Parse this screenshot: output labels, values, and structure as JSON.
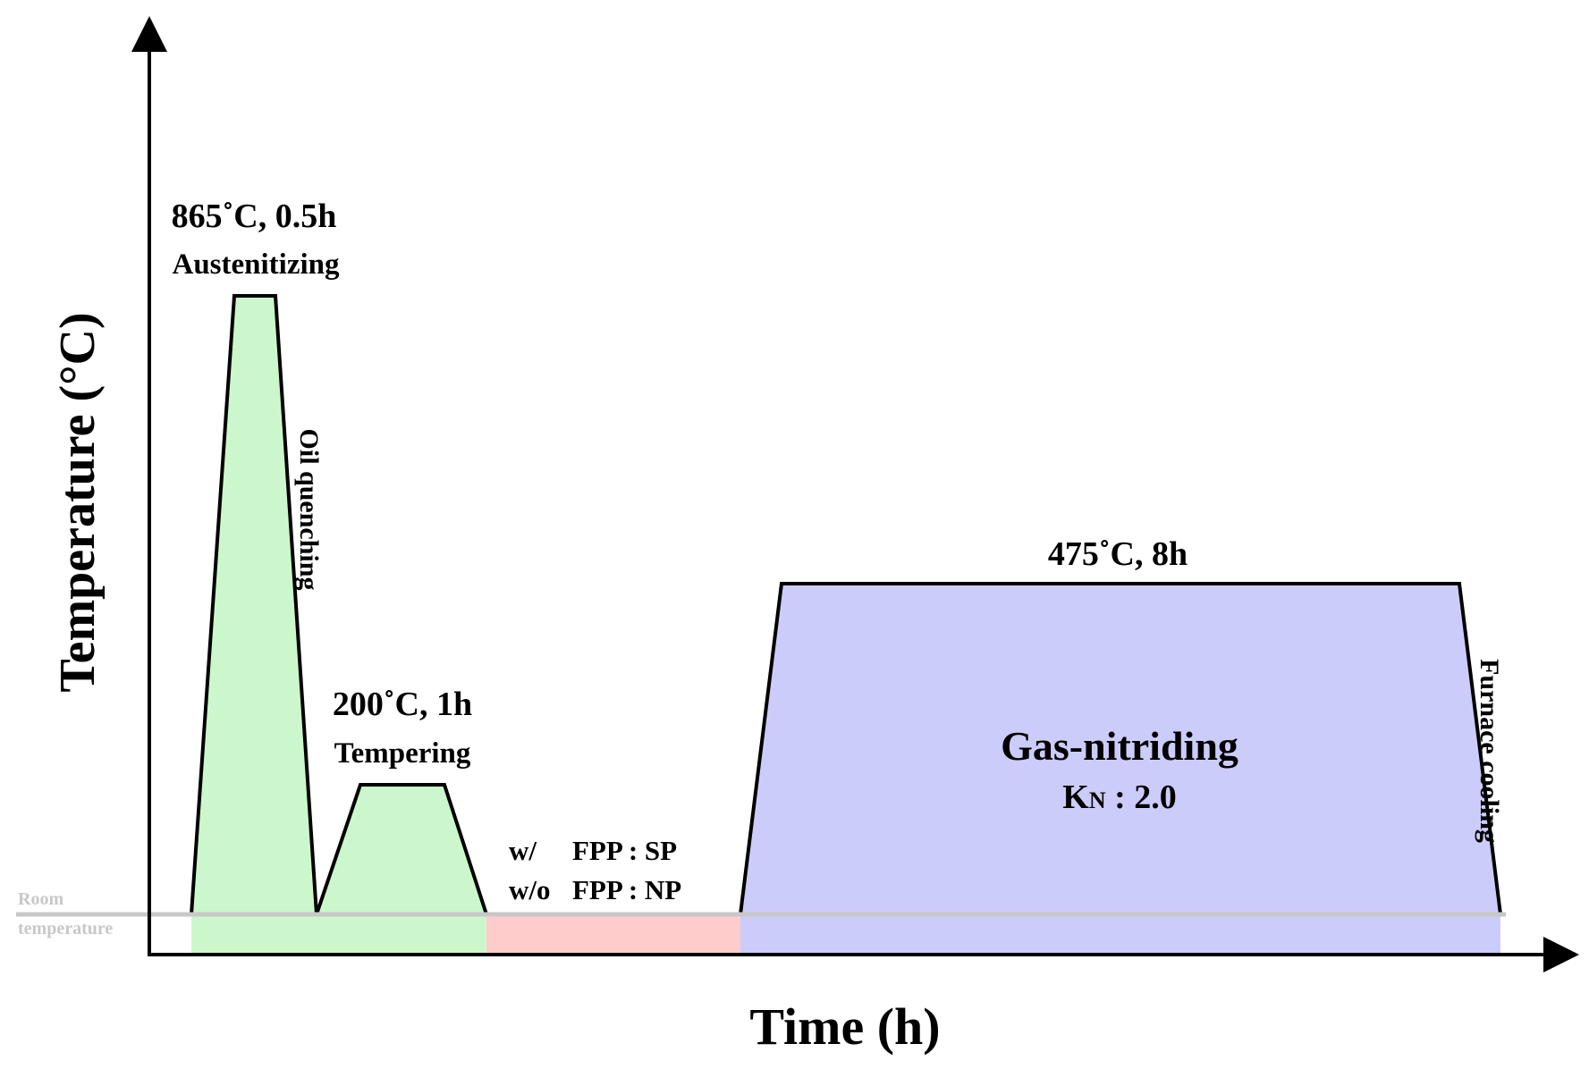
{
  "axes": {
    "x_label": "Time (h)",
    "y_label": "Temperature (°C)"
  },
  "room_temperature": {
    "line1": "Room",
    "line2": "temperature"
  },
  "stages": {
    "austenitizing": {
      "condition": "865˚C, 0.5h",
      "name": "Austenitizing",
      "color": "#ccf7cc"
    },
    "quenching": {
      "name": "Oil quenching"
    },
    "tempering": {
      "condition": "200˚C, 1h",
      "name": "Tempering",
      "color": "#ccf7cc"
    },
    "fpp": {
      "line1_prefix": "w/",
      "line1_rest": "FPP : SP",
      "line2_prefix": "w/o",
      "line2_rest": "FPP : NP",
      "color": "#ffcccc"
    },
    "nitriding": {
      "condition": "475˚C, 8h",
      "name": "Gas-nitriding",
      "kn_symbol": "K",
      "kn_subscript": "N",
      "kn_value": " : 2.0",
      "color": "#ccccfa"
    },
    "cooling": {
      "name": "Furnace cooling"
    }
  },
  "colors": {
    "line": "#000000",
    "room_line": "#c8c8c8"
  }
}
